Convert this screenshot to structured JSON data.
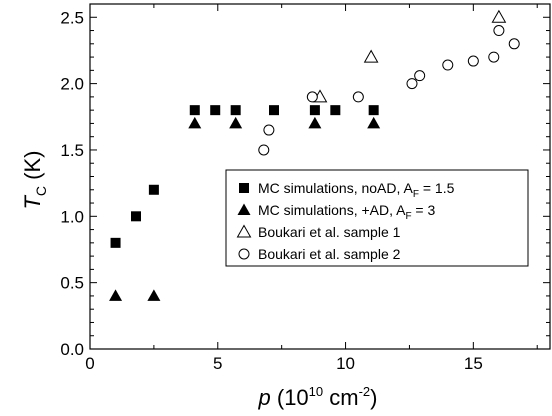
{
  "chart_data": {
    "type": "scatter",
    "xlabel": {
      "main": "p",
      "paren_open": " (10",
      "sup1": "10",
      "unit": " cm",
      "sup2": "-2",
      "paren_close": ")"
    },
    "ylabel": {
      "main": "T",
      "sub": "C",
      "unit": " (K)"
    },
    "xlim": [
      0,
      18
    ],
    "ylim": [
      0,
      2.6
    ],
    "x_ticks": [
      0,
      5,
      10,
      15
    ],
    "x_tick_labels": [
      "0",
      "5",
      "10",
      "15"
    ],
    "y_ticks": [
      0.0,
      0.5,
      1.0,
      1.5,
      2.0,
      2.5
    ],
    "y_tick_labels": [
      "0.0",
      "0.5",
      "1.0",
      "1.5",
      "2.0",
      "2.5"
    ],
    "grid": false,
    "legend_position": "center-right",
    "series": [
      {
        "name": "MC simulations, noAD, A",
        "name_sub": "F",
        "name_suffix": " = 1.5",
        "marker": "square-filled",
        "points": [
          [
            1.0,
            0.8
          ],
          [
            1.8,
            1.0
          ],
          [
            2.5,
            1.2
          ],
          [
            4.1,
            1.8
          ],
          [
            4.9,
            1.8
          ],
          [
            5.7,
            1.8
          ],
          [
            7.2,
            1.8
          ],
          [
            8.8,
            1.8
          ],
          [
            9.6,
            1.8
          ],
          [
            11.1,
            1.8
          ]
        ]
      },
      {
        "name": "MC simulations, +AD, A",
        "name_sub": "F",
        "name_suffix": " = 3",
        "marker": "triangle-filled",
        "points": [
          [
            1.0,
            0.4
          ],
          [
            2.5,
            0.4
          ],
          [
            4.1,
            1.7
          ],
          [
            5.7,
            1.7
          ],
          [
            8.8,
            1.7
          ],
          [
            11.1,
            1.7
          ]
        ]
      },
      {
        "name": "Boukari et al. sample 1",
        "marker": "triangle-open",
        "points": [
          [
            9.0,
            1.9
          ],
          [
            11.0,
            2.2
          ],
          [
            16.0,
            2.5
          ]
        ]
      },
      {
        "name": "Boukari et al. sample 2",
        "marker": "circle-open",
        "points": [
          [
            6.8,
            1.5
          ],
          [
            7.0,
            1.65
          ],
          [
            8.7,
            1.9
          ],
          [
            10.5,
            1.9
          ],
          [
            12.6,
            2.0
          ],
          [
            12.9,
            2.06
          ],
          [
            14.0,
            2.14
          ],
          [
            15.0,
            2.17
          ],
          [
            15.8,
            2.2
          ],
          [
            16.0,
            2.4
          ],
          [
            16.6,
            2.3
          ]
        ]
      }
    ]
  }
}
